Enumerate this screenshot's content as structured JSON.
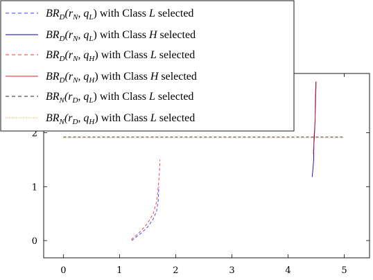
{
  "chart_data": {
    "type": "line",
    "xlim": [
      -0.35,
      5.45
    ],
    "ylim": [
      -0.32,
      3.1
    ],
    "x_ticks": [
      0,
      1,
      2,
      3,
      4,
      5
    ],
    "y_ticks": [
      0,
      1,
      2
    ],
    "x_tick_labels": [
      "0",
      "1",
      "2",
      "3",
      "4",
      "5"
    ],
    "y_tick_labels": [
      "0",
      "1",
      "2"
    ],
    "legend_placement": "top-left",
    "grid": false,
    "series": [
      {
        "name": "BR_D(r_N, q_L) with Class L selected",
        "legend_math": {
          "main": "BR",
          "sub": "D",
          "args": "(r",
          "arg1sub": "N",
          "mid": ", q",
          "arg2sub": "L",
          "close": ")"
        },
        "legend_suffix": "with Class",
        "legend_class": "L",
        "legend_end": "selected",
        "color": "#3333ff",
        "dash": "dashed",
        "x": [
          1.22,
          1.3,
          1.4,
          1.5,
          1.6,
          1.66,
          1.69,
          1.7
        ],
        "y": [
          0.0,
          0.07,
          0.15,
          0.25,
          0.4,
          0.55,
          0.75,
          1.0
        ]
      },
      {
        "name": "BR_D(r_N, q_L) with Class H selected",
        "legend_math": {
          "main": "BR",
          "sub": "D",
          "args": "(r",
          "arg1sub": "N",
          "mid": ", q",
          "arg2sub": "L",
          "close": ")"
        },
        "legend_suffix": "with Class",
        "legend_class": "H",
        "legend_end": "selected",
        "color": "#0000b3",
        "dash": "solid",
        "x": [
          4.43,
          4.44,
          4.455,
          4.46,
          4.47,
          4.48,
          4.485,
          4.49,
          4.495
        ],
        "y": [
          1.18,
          1.3,
          1.5,
          1.8,
          1.95,
          2.2,
          2.5,
          2.75,
          2.95
        ]
      },
      {
        "name": "BR_D(r_N, q_H) with Class L selected",
        "legend_math": {
          "main": "BR",
          "sub": "D",
          "args": "(r",
          "arg1sub": "N",
          "mid": ", q",
          "arg2sub": "H",
          "close": ")"
        },
        "legend_suffix": "with Class",
        "legend_class": "L",
        "legend_end": "selected",
        "color": "#ee3333",
        "dash": "dashed",
        "x": [
          1.21,
          1.3,
          1.4,
          1.5,
          1.6,
          1.66,
          1.69,
          1.71,
          1.72
        ],
        "y": [
          0.02,
          0.1,
          0.2,
          0.32,
          0.5,
          0.72,
          1.0,
          1.25,
          1.5
        ]
      },
      {
        "name": "BR_D(r_N, q_H) with Class H selected",
        "legend_math": {
          "main": "BR",
          "sub": "D",
          "args": "(r",
          "arg1sub": "N",
          "mid": ", q",
          "arg2sub": "H",
          "close": ")"
        },
        "legend_suffix": "with Class",
        "legend_class": "H",
        "legend_end": "selected",
        "color": "#dd2222",
        "dash": "solid",
        "x": [
          4.45,
          4.455,
          4.46,
          4.47,
          4.48,
          4.49,
          4.495,
          4.5
        ],
        "y": [
          1.6,
          1.75,
          1.9,
          2.05,
          2.25,
          2.5,
          2.75,
          2.95
        ]
      },
      {
        "name": "BR_N(r_D, q_L) with Class L selected",
        "legend_math": {
          "main": "BR",
          "sub": "N",
          "args": "(r",
          "arg1sub": "D",
          "mid": ", q",
          "arg2sub": "L",
          "close": ")"
        },
        "legend_suffix": "with Class",
        "legend_class": "L",
        "legend_end": "selected",
        "color": "#222222",
        "dash": "dashed",
        "x": [
          0.0,
          5.0
        ],
        "y": [
          1.92,
          1.92
        ]
      },
      {
        "name": "BR_N(r_D, q_H) with Class L selected",
        "legend_math": {
          "main": "BR",
          "sub": "N",
          "args": "(r",
          "arg1sub": "D",
          "mid": ", q",
          "arg2sub": "H",
          "close": ")"
        },
        "legend_suffix": "with Class",
        "legend_class": "L",
        "legend_end": "selected",
        "color": "#e6a020",
        "dash": "dotted",
        "x": [
          0.0,
          5.0
        ],
        "y": [
          1.905,
          1.905
        ]
      }
    ]
  }
}
